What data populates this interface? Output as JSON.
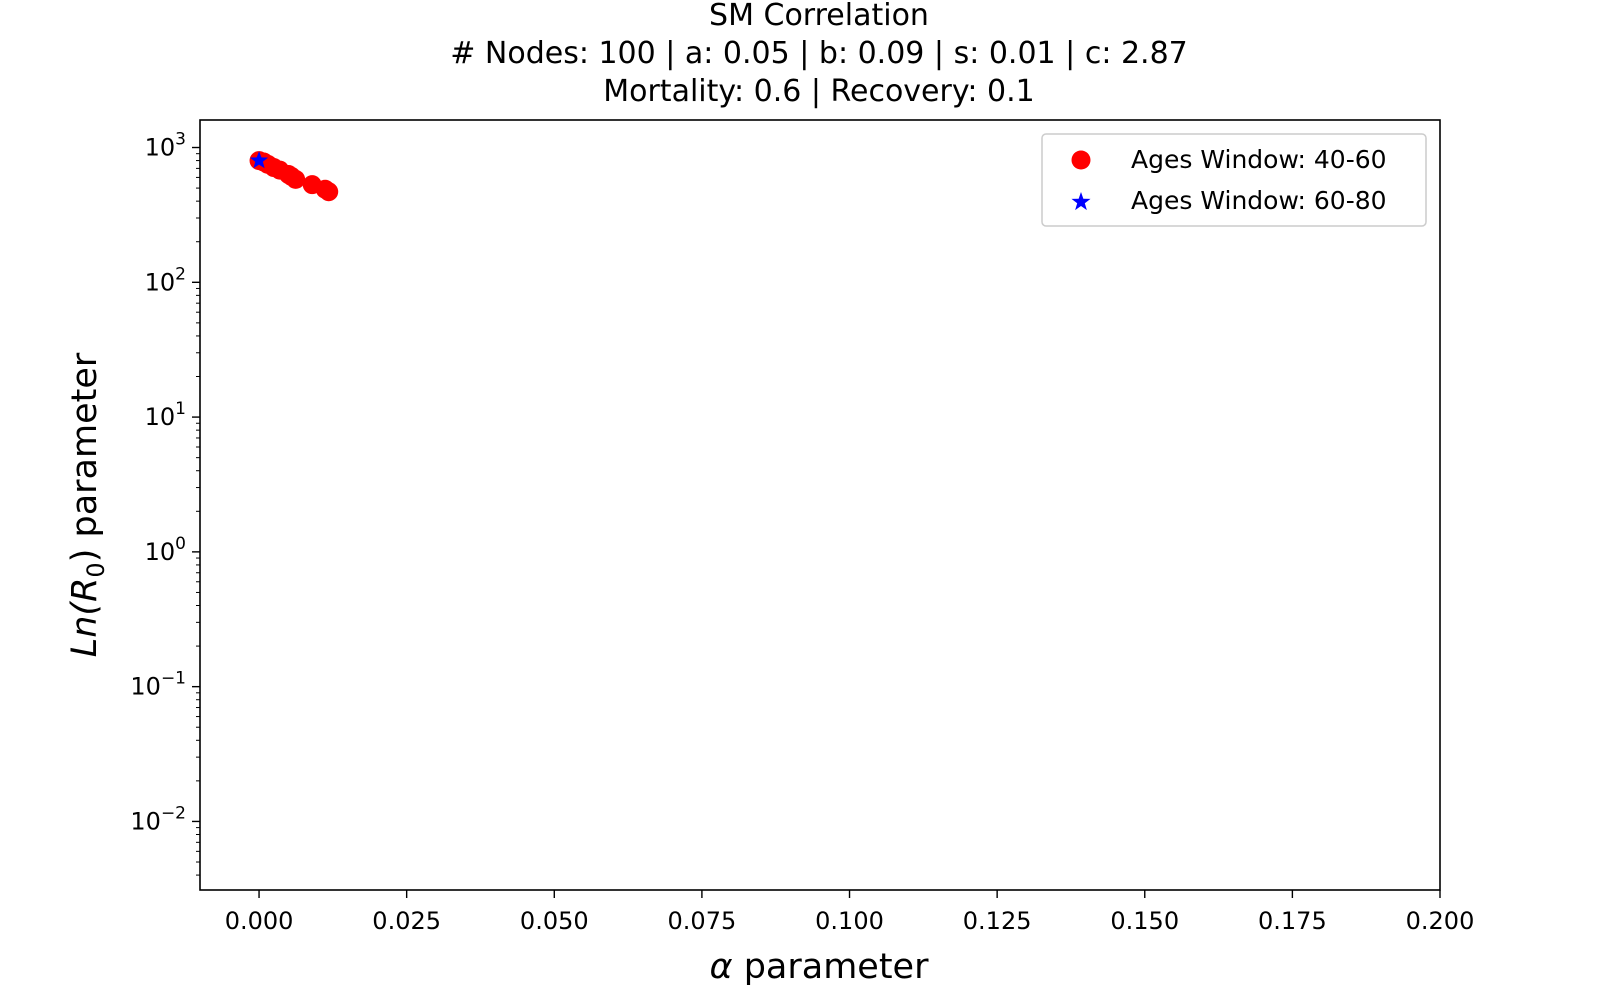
{
  "chart_data": {
    "type": "scatter",
    "title_lines": [
      "SM Correlation",
      "# Nodes: 100 | a: 0.05 | b: 0.09 | s: 0.01 | c: 2.87",
      "Mortality: 0.6 | Recovery: 0.1"
    ],
    "xlabel": {
      "symbol": "α",
      "text": " parameter"
    },
    "ylabel": {
      "prefix": "Ln(",
      "var": "R",
      "sub": "0",
      "suffix": ") parameter"
    },
    "xlim": [
      -0.01,
      0.2
    ],
    "ylim": [
      0.0031,
      1600
    ],
    "yscale": "log",
    "x_ticks": [
      0.0,
      0.025,
      0.05,
      0.075,
      0.1,
      0.125,
      0.15,
      0.175,
      0.2
    ],
    "x_tick_labels": [
      "0.000",
      "0.025",
      "0.050",
      "0.075",
      "0.100",
      "0.125",
      "0.150",
      "0.175",
      "0.200"
    ],
    "y_ticks": [
      {
        "value": 1000,
        "base": "10",
        "exp": "3"
      },
      {
        "value": 100,
        "base": "10",
        "exp": "2"
      },
      {
        "value": 10,
        "base": "10",
        "exp": "1"
      },
      {
        "value": 1,
        "base": "10",
        "exp": "0"
      },
      {
        "value": 0.1,
        "base": "10",
        "exp": "−1"
      },
      {
        "value": 0.01,
        "base": "10",
        "exp": "−2"
      }
    ],
    "grid": false,
    "legend_position": "top-right",
    "series": [
      {
        "name": "Ages Window: 40-60",
        "marker": "circle",
        "color": "#ff0000",
        "points": [
          {
            "x": 0.0,
            "y": 800
          },
          {
            "x": 0.0008,
            "y": 780
          },
          {
            "x": 0.0015,
            "y": 750
          },
          {
            "x": 0.0025,
            "y": 710
          },
          {
            "x": 0.0035,
            "y": 680
          },
          {
            "x": 0.005,
            "y": 630
          },
          {
            "x": 0.0055,
            "y": 610
          },
          {
            "x": 0.0062,
            "y": 580
          },
          {
            "x": 0.009,
            "y": 530
          },
          {
            "x": 0.0112,
            "y": 490
          },
          {
            "x": 0.0118,
            "y": 470
          }
        ]
      },
      {
        "name": "Ages Window: 60-80",
        "marker": "star",
        "color": "#0000ff",
        "points": [
          {
            "x": 0.0,
            "y": 800
          }
        ]
      }
    ]
  }
}
